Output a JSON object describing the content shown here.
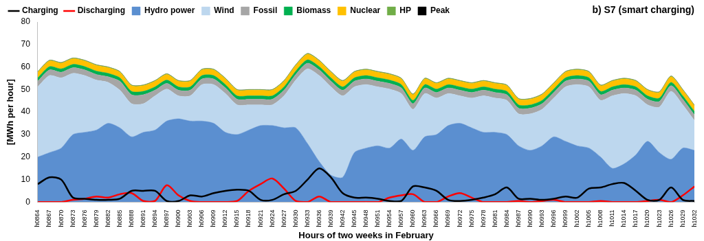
{
  "chart_data": {
    "type": "area",
    "title": "b) S7 (smart charging)",
    "x_label": "Hours of two weeks in February",
    "y_label": "[MWh per hour]",
    "categories": [
      "h0864",
      "h0867",
      "h0870",
      "h0873",
      "h0876",
      "h0879",
      "h0882",
      "h0885",
      "h0888",
      "h0891",
      "h0894",
      "h0897",
      "h0900",
      "h0903",
      "h0906",
      "h0909",
      "h0912",
      "h0915",
      "h0918",
      "h0921",
      "h0924",
      "h0927",
      "h0930",
      "h0933",
      "h0936",
      "h0939",
      "h0942",
      "h0945",
      "h0948",
      "h0951",
      "h0954",
      "h0957",
      "h0960",
      "h0963",
      "h0966",
      "h0969",
      "h0972",
      "h0975",
      "h0978",
      "h0981",
      "h0984",
      "h0987",
      "h0990",
      "h0993",
      "h0996",
      "h0999",
      "h1002",
      "h1005",
      "h1008",
      "h1011",
      "h1014",
      "h1017",
      "h1020",
      "h1023",
      "h1026",
      "h1029",
      "h1032"
    ],
    "ylim": [
      0,
      80
    ],
    "yticks": [
      0,
      10,
      20,
      30,
      40,
      50,
      60,
      70,
      80
    ],
    "grid": false,
    "stacked": true,
    "legend": "top left",
    "series": [
      {
        "name": "Hydro power",
        "type": "area",
        "color": "#5b8fd0",
        "values": [
          20,
          22,
          24,
          30,
          31,
          32,
          35,
          33,
          29,
          31,
          32,
          36,
          37,
          36,
          36,
          35,
          31,
          30,
          32,
          34,
          34,
          33,
          33,
          26,
          18,
          12,
          11,
          22,
          24,
          25,
          24,
          28,
          23,
          29,
          30,
          34,
          35,
          33,
          31,
          31,
          30,
          25,
          23,
          25,
          29,
          27,
          25,
          24,
          20,
          15,
          17,
          21,
          27,
          22,
          19,
          24,
          23
        ]
      },
      {
        "name": "Wind",
        "type": "area",
        "color": "#bdd7ee",
        "values": [
          31.2,
          34.2,
          31.2,
          27.2,
          25.2,
          22.2,
          18.2,
          16.7,
          14.7,
          12.7,
          15.2,
          14.2,
          10.2,
          11.2,
          16.2,
          17.2,
          17.2,
          13.2,
          11.2,
          9.2,
          9.2,
          14.2,
          21.2,
          33.2,
          38.2,
          39.2,
          36.2,
          29.2,
          28.2,
          26.2,
          26.2,
          20.2,
          18.2,
          19.2,
          16.2,
          14.2,
          12.2,
          13.2,
          16.2,
          15.2,
          15.2,
          14.2,
          16.2,
          16.2,
          17.2,
          24.2,
          27.2,
          27.2,
          25.2,
          32.2,
          31.2,
          26.2,
          16.2,
          20.2,
          30.2,
          19.2,
          13.2
        ]
      },
      {
        "name": "Fossil",
        "type": "area",
        "color": "#a6a6a6",
        "values": [
          2.5,
          2.5,
          2.5,
          2.5,
          2.5,
          2.5,
          2.5,
          4,
          4,
          4,
          2.5,
          2.5,
          2.5,
          2.5,
          2.5,
          2.5,
          2.5,
          2.5,
          2.5,
          2.5,
          2.5,
          2.5,
          2.5,
          2.5,
          2.5,
          2.5,
          2.5,
          2.5,
          2.5,
          2.5,
          2.5,
          2.5,
          2.5,
          2.5,
          2.5,
          2.5,
          2.5,
          2.5,
          2.5,
          2.5,
          2.5,
          2.5,
          2.5,
          2.5,
          2.5,
          2.5,
          2.5,
          2.5,
          2.5,
          2.5,
          2.5,
          2.5,
          2.5,
          2.5,
          2.5,
          2.5,
          2.5
        ]
      },
      {
        "name": "Biomass",
        "type": "area",
        "color": "#00b050",
        "values": [
          1.5,
          1.5,
          1.5,
          1.5,
          1.5,
          1.5,
          1.5,
          1.5,
          1.5,
          1.5,
          1.5,
          1.5,
          1.5,
          1.5,
          1.5,
          1.5,
          1.5,
          1.5,
          1.5,
          1.5,
          1.5,
          1.5,
          1.5,
          1.5,
          1.5,
          1.5,
          1.5,
          1.5,
          1.5,
          1.5,
          1.5,
          1.5,
          1.5,
          1.5,
          1.5,
          1.5,
          1.5,
          1.5,
          1.5,
          1.5,
          1.5,
          1.5,
          1.5,
          1.5,
          1.5,
          1.5,
          1.5,
          1.5,
          1.5,
          1.5,
          1.5,
          1.5,
          1.5,
          1.5,
          1.5,
          1.5,
          1.5
        ]
      },
      {
        "name": "Nuclear",
        "type": "area",
        "color": "#ffc000",
        "values": [
          2.5,
          2.5,
          2.5,
          2.5,
          2.5,
          2.5,
          2.5,
          2.5,
          2.5,
          2.5,
          2.5,
          2.5,
          2.5,
          2.5,
          2.5,
          2.5,
          2.5,
          2.5,
          2.5,
          2.5,
          2.5,
          2.5,
          2.5,
          2.5,
          2.5,
          2.5,
          2.5,
          2.5,
          2.5,
          2.5,
          2.5,
          2.5,
          2.5,
          2.5,
          2.5,
          2.5,
          2.5,
          2.5,
          2.5,
          2.5,
          2.5,
          2.5,
          2.5,
          2.5,
          2.5,
          2.5,
          2.5,
          2.5,
          2.5,
          2.5,
          2.5,
          2.5,
          2.5,
          2.5,
          2.5,
          2.5,
          2.5
        ]
      },
      {
        "name": "HP",
        "type": "area",
        "color": "#70ad47",
        "values": [
          0.3,
          0.3,
          0.3,
          0.3,
          0.3,
          0.3,
          0.3,
          0.3,
          0.3,
          0.3,
          0.3,
          0.3,
          0.3,
          0.3,
          0.3,
          0.3,
          0.3,
          0.3,
          0.3,
          0.3,
          0.3,
          0.3,
          0.3,
          0.3,
          0.3,
          0.3,
          0.3,
          0.3,
          0.3,
          0.3,
          0.3,
          0.3,
          0.3,
          0.3,
          0.3,
          0.3,
          0.3,
          0.3,
          0.3,
          0.3,
          0.3,
          0.3,
          0.3,
          0.3,
          0.3,
          0.3,
          0.3,
          0.3,
          0.3,
          0.3,
          0.3,
          0.3,
          0.3,
          0.3,
          0.3,
          0.3,
          0.3
        ]
      },
      {
        "name": "Peak",
        "type": "area",
        "color": "#000000",
        "values": [
          0,
          0,
          0,
          0,
          0,
          0,
          0,
          0,
          0,
          0,
          0,
          0,
          0,
          0,
          0,
          0,
          0,
          0,
          0,
          0,
          0,
          0,
          0,
          0,
          0,
          0,
          0,
          0,
          0,
          0,
          0,
          0,
          0,
          0,
          0,
          0,
          0,
          0,
          0,
          0,
          0,
          0,
          0,
          0,
          0,
          0,
          0,
          0,
          0,
          0,
          0,
          0,
          0,
          0,
          0,
          0,
          0
        ]
      },
      {
        "name": "Charging",
        "type": "line",
        "color": "#000000",
        "values": [
          8,
          11,
          10,
          2,
          1.5,
          1,
          1,
          1.5,
          5,
          5,
          5,
          0.5,
          0.5,
          3,
          2.5,
          4,
          5,
          5.5,
          5,
          1,
          1,
          3.5,
          5,
          10,
          15,
          11,
          4,
          2,
          2,
          1.5,
          0.5,
          0.5,
          7,
          6.5,
          5,
          1,
          0.5,
          1,
          2,
          3.5,
          6.5,
          1.5,
          1.5,
          1,
          1.5,
          2.5,
          2,
          6,
          6.5,
          8,
          8.5,
          5,
          1,
          1,
          6.5,
          1,
          0.5
        ]
      },
      {
        "name": "Discharging",
        "type": "line",
        "color": "#ff0000",
        "values": [
          0,
          0,
          0,
          1,
          1.5,
          2.5,
          2,
          3.5,
          4,
          0.5,
          0.5,
          7.5,
          3,
          0.5,
          0,
          0,
          0,
          0.5,
          5,
          8,
          10.5,
          6,
          0.5,
          0,
          2.5,
          0,
          0,
          0,
          0,
          0,
          2,
          3,
          3.5,
          0,
          0,
          2.5,
          4,
          2,
          0,
          0,
          0,
          0.5,
          0,
          0.5,
          1,
          0,
          0,
          0,
          0.5,
          0,
          0,
          0,
          0.5,
          1,
          0,
          3,
          7
        ]
      }
    ]
  }
}
